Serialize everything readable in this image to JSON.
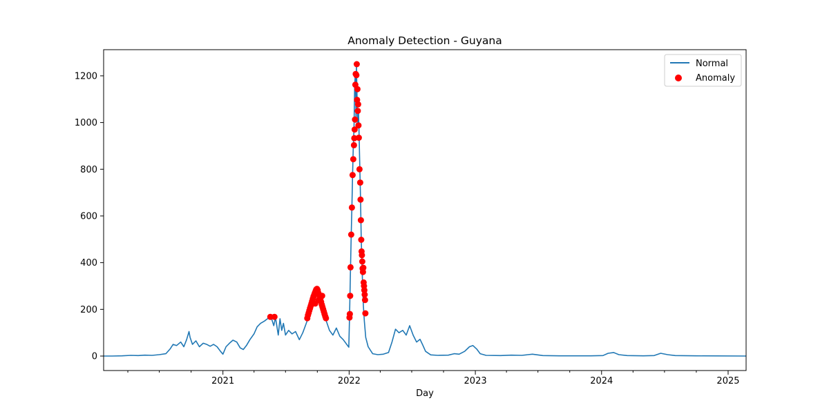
{
  "chart_data": {
    "type": "line",
    "title": "Anomaly Detection - Guyana",
    "xlabel": "Day",
    "ylabel": "",
    "x_start": "2020-01-22",
    "x_end": "2025-02-22",
    "xlim": [
      "2020-01-22",
      "2025-02-22"
    ],
    "ylim": [
      -62,
      1312
    ],
    "x_ticks": [
      "2021-01-01",
      "2022-01-01",
      "2023-01-01",
      "2024-01-01",
      "2025-01-01"
    ],
    "x_tick_labels": [
      "2021",
      "2022",
      "2023",
      "2024",
      "2025"
    ],
    "y_ticks": [
      0,
      200,
      400,
      600,
      800,
      1000,
      1200
    ],
    "y_tick_labels": [
      "0",
      "200",
      "400",
      "600",
      "800",
      "1000",
      "1200"
    ],
    "grid": false,
    "legend_position": "top-right",
    "colors": {
      "normal": "#1f77b4",
      "anomaly": "#ff0000"
    },
    "series": [
      {
        "name": "Normal",
        "kind": "line",
        "points": [
          [
            "2020-01-22",
            0
          ],
          [
            "2020-02-15",
            0
          ],
          [
            "2020-03-15",
            1
          ],
          [
            "2020-04-10",
            3
          ],
          [
            "2020-05-01",
            2
          ],
          [
            "2020-05-20",
            4
          ],
          [
            "2020-06-10",
            3
          ],
          [
            "2020-07-01",
            6
          ],
          [
            "2020-07-20",
            10
          ],
          [
            "2020-08-01",
            30
          ],
          [
            "2020-08-10",
            50
          ],
          [
            "2020-08-20",
            45
          ],
          [
            "2020-09-01",
            60
          ],
          [
            "2020-09-10",
            40
          ],
          [
            "2020-09-18",
            70
          ],
          [
            "2020-09-25",
            105
          ],
          [
            "2020-09-28",
            80
          ],
          [
            "2020-10-05",
            50
          ],
          [
            "2020-10-15",
            65
          ],
          [
            "2020-10-25",
            40
          ],
          [
            "2020-11-05",
            55
          ],
          [
            "2020-11-15",
            50
          ],
          [
            "2020-11-25",
            42
          ],
          [
            "2020-12-05",
            50
          ],
          [
            "2020-12-15",
            40
          ],
          [
            "2020-12-25",
            20
          ],
          [
            "2021-01-01",
            8
          ],
          [
            "2021-01-10",
            40
          ],
          [
            "2021-01-20",
            55
          ],
          [
            "2021-01-30",
            68
          ],
          [
            "2021-02-10",
            60
          ],
          [
            "2021-02-20",
            35
          ],
          [
            "2021-03-01",
            28
          ],
          [
            "2021-03-10",
            45
          ],
          [
            "2021-03-20",
            70
          ],
          [
            "2021-04-01",
            95
          ],
          [
            "2021-04-10",
            125
          ],
          [
            "2021-04-20",
            140
          ],
          [
            "2021-05-01",
            150
          ],
          [
            "2021-05-10",
            160
          ],
          [
            "2021-05-20",
            168
          ],
          [
            "2021-05-28",
            130
          ],
          [
            "2021-06-02",
            165
          ],
          [
            "2021-06-10",
            90
          ],
          [
            "2021-06-15",
            160
          ],
          [
            "2021-06-20",
            110
          ],
          [
            "2021-06-25",
            140
          ],
          [
            "2021-07-01",
            90
          ],
          [
            "2021-07-10",
            110
          ],
          [
            "2021-07-20",
            95
          ],
          [
            "2021-07-30",
            105
          ],
          [
            "2021-08-10",
            70
          ],
          [
            "2021-08-20",
            100
          ],
          [
            "2021-08-30",
            140
          ],
          [
            "2021-09-05",
            165
          ],
          [
            "2021-09-12",
            200
          ],
          [
            "2021-09-20",
            240
          ],
          [
            "2021-09-27",
            285
          ],
          [
            "2021-10-03",
            270
          ],
          [
            "2021-10-08",
            255
          ],
          [
            "2021-10-15",
            200
          ],
          [
            "2021-10-20",
            175
          ],
          [
            "2021-10-27",
            150
          ],
          [
            "2021-11-05",
            110
          ],
          [
            "2021-11-15",
            90
          ],
          [
            "2021-11-25",
            120
          ],
          [
            "2021-12-05",
            85
          ],
          [
            "2021-12-15",
            70
          ],
          [
            "2021-12-25",
            50
          ],
          [
            "2021-12-31",
            38
          ],
          [
            "2022-01-02",
            160
          ],
          [
            "2022-01-05",
            380
          ],
          [
            "2022-01-07",
            520
          ],
          [
            "2022-01-09",
            640
          ],
          [
            "2022-01-11",
            780
          ],
          [
            "2022-01-13",
            900
          ],
          [
            "2022-01-15",
            970
          ],
          [
            "2022-01-17",
            1160
          ],
          [
            "2022-01-19",
            1210
          ],
          [
            "2022-01-21",
            1000
          ],
          [
            "2022-01-22",
            1250
          ],
          [
            "2022-01-24",
            1100
          ],
          [
            "2022-01-26",
            985
          ],
          [
            "2022-01-28",
            1050
          ],
          [
            "2022-01-30",
            935
          ],
          [
            "2022-02-01",
            800
          ],
          [
            "2022-02-03",
            670
          ],
          [
            "2022-02-05",
            500
          ],
          [
            "2022-02-07",
            400
          ],
          [
            "2022-02-09",
            300
          ],
          [
            "2022-02-11",
            220
          ],
          [
            "2022-02-14",
            150
          ],
          [
            "2022-02-18",
            80
          ],
          [
            "2022-02-25",
            40
          ],
          [
            "2022-03-10",
            10
          ],
          [
            "2022-03-25",
            6
          ],
          [
            "2022-04-10",
            8
          ],
          [
            "2022-04-25",
            15
          ],
          [
            "2022-05-05",
            60
          ],
          [
            "2022-05-15",
            115
          ],
          [
            "2022-05-25",
            100
          ],
          [
            "2022-06-05",
            110
          ],
          [
            "2022-06-15",
            90
          ],
          [
            "2022-06-25",
            130
          ],
          [
            "2022-07-05",
            90
          ],
          [
            "2022-07-15",
            60
          ],
          [
            "2022-07-25",
            72
          ],
          [
            "2022-08-01",
            50
          ],
          [
            "2022-08-10",
            20
          ],
          [
            "2022-08-25",
            5
          ],
          [
            "2022-09-15",
            3
          ],
          [
            "2022-10-15",
            4
          ],
          [
            "2022-11-01",
            10
          ],
          [
            "2022-11-15",
            8
          ],
          [
            "2022-12-01",
            20
          ],
          [
            "2022-12-15",
            40
          ],
          [
            "2022-12-25",
            45
          ],
          [
            "2023-01-05",
            30
          ],
          [
            "2023-01-15",
            10
          ],
          [
            "2023-02-01",
            3
          ],
          [
            "2023-03-15",
            2
          ],
          [
            "2023-04-15",
            4
          ],
          [
            "2023-05-15",
            3
          ],
          [
            "2023-06-15",
            8
          ],
          [
            "2023-07-15",
            2
          ],
          [
            "2023-09-01",
            1
          ],
          [
            "2023-12-01",
            1
          ],
          [
            "2024-01-05",
            2
          ],
          [
            "2024-01-20",
            12
          ],
          [
            "2024-02-05",
            15
          ],
          [
            "2024-02-20",
            6
          ],
          [
            "2024-03-15",
            2
          ],
          [
            "2024-05-01",
            1
          ],
          [
            "2024-06-01",
            2
          ],
          [
            "2024-06-20",
            12
          ],
          [
            "2024-07-10",
            6
          ],
          [
            "2024-08-01",
            2
          ],
          [
            "2024-10-01",
            1
          ],
          [
            "2025-02-22",
            0
          ]
        ]
      },
      {
        "name": "Anomaly",
        "kind": "scatter",
        "points": [
          [
            "2021-05-18",
            168
          ],
          [
            "2021-05-30",
            168
          ],
          [
            "2021-09-02",
            162
          ],
          [
            "2021-09-04",
            175
          ],
          [
            "2021-09-06",
            185
          ],
          [
            "2021-09-08",
            195
          ],
          [
            "2021-09-10",
            205
          ],
          [
            "2021-09-12",
            215
          ],
          [
            "2021-09-14",
            225
          ],
          [
            "2021-09-16",
            235
          ],
          [
            "2021-09-18",
            245
          ],
          [
            "2021-09-20",
            255
          ],
          [
            "2021-09-22",
            262
          ],
          [
            "2021-09-24",
            270
          ],
          [
            "2021-09-26",
            278
          ],
          [
            "2021-09-28",
            285
          ],
          [
            "2021-09-30",
            288
          ],
          [
            "2021-10-02",
            282
          ],
          [
            "2021-10-04",
            270
          ],
          [
            "2021-10-06",
            262
          ],
          [
            "2021-10-08",
            255
          ],
          [
            "2021-10-10",
            245
          ],
          [
            "2021-10-12",
            232
          ],
          [
            "2021-10-14",
            220
          ],
          [
            "2021-10-16",
            210
          ],
          [
            "2021-10-18",
            200
          ],
          [
            "2021-10-20",
            190
          ],
          [
            "2021-10-22",
            180
          ],
          [
            "2021-10-24",
            170
          ],
          [
            "2021-10-26",
            162
          ],
          [
            "2021-09-25",
            225
          ],
          [
            "2021-10-05",
            240
          ],
          [
            "2021-10-15",
            258
          ],
          [
            "2022-01-02",
            165
          ],
          [
            "2022-01-03",
            180
          ],
          [
            "2022-01-04",
            258
          ],
          [
            "2022-01-05",
            380
          ],
          [
            "2022-01-07",
            520
          ],
          [
            "2022-01-09",
            636
          ],
          [
            "2022-01-11",
            775
          ],
          [
            "2022-01-13",
            843
          ],
          [
            "2022-01-15",
            903
          ],
          [
            "2022-01-16",
            933
          ],
          [
            "2022-01-17",
            970
          ],
          [
            "2022-01-18",
            1013
          ],
          [
            "2022-01-19",
            1162
          ],
          [
            "2022-01-20",
            1208
          ],
          [
            "2022-01-22",
            1203
          ],
          [
            "2022-01-23",
            1250
          ],
          [
            "2022-01-24",
            1097
          ],
          [
            "2022-01-25",
            1143
          ],
          [
            "2022-01-26",
            1050
          ],
          [
            "2022-01-27",
            1078
          ],
          [
            "2022-01-28",
            988
          ],
          [
            "2022-01-29",
            935
          ],
          [
            "2022-01-31",
            800
          ],
          [
            "2022-02-02",
            743
          ],
          [
            "2022-02-03",
            670
          ],
          [
            "2022-02-04",
            582
          ],
          [
            "2022-02-05",
            498
          ],
          [
            "2022-02-06",
            448
          ],
          [
            "2022-02-07",
            432
          ],
          [
            "2022-02-08",
            405
          ],
          [
            "2022-02-09",
            375
          ],
          [
            "2022-02-10",
            360
          ],
          [
            "2022-02-11",
            378
          ],
          [
            "2022-02-12",
            315
          ],
          [
            "2022-02-13",
            300
          ],
          [
            "2022-02-14",
            282
          ],
          [
            "2022-02-15",
            263
          ],
          [
            "2022-02-16",
            240
          ],
          [
            "2022-02-17",
            183
          ]
        ]
      }
    ]
  }
}
